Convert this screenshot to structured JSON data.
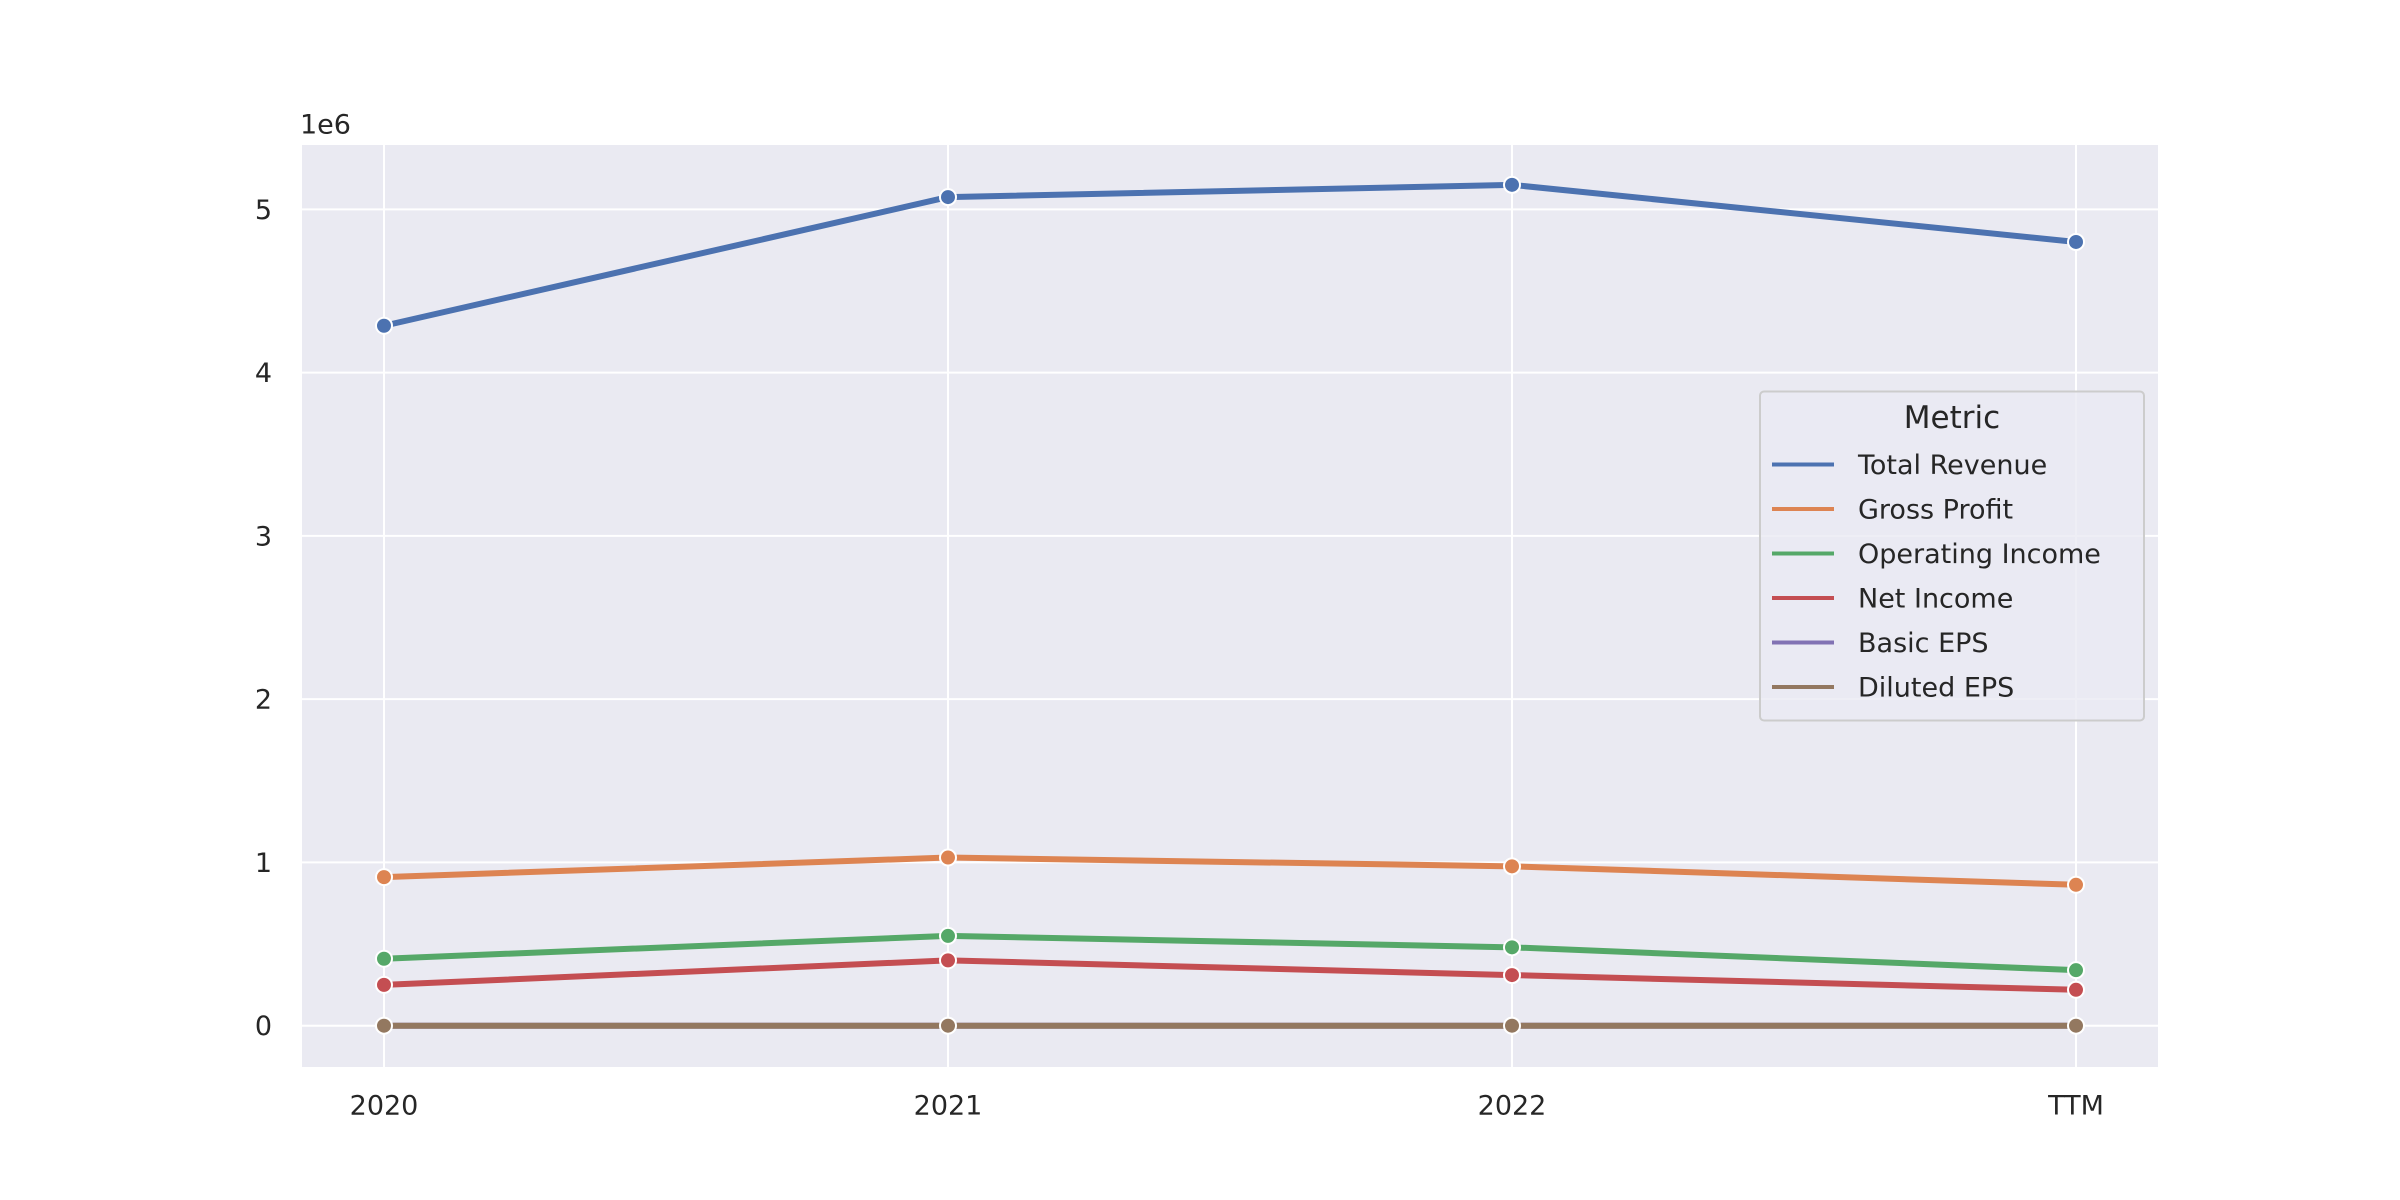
{
  "chart_data": {
    "type": "line",
    "categories": [
      "2020",
      "2021",
      "2022",
      "TTM"
    ],
    "series": [
      {
        "name": "Total Revenue",
        "color": "#4c72b0",
        "values": [
          4.287,
          5.075,
          5.15,
          4.8
        ]
      },
      {
        "name": "Gross Profit",
        "color": "#dd8452",
        "values": [
          0.91,
          1.03,
          0.976,
          0.863
        ]
      },
      {
        "name": "Operating Income",
        "color": "#55a868",
        "values": [
          0.41,
          0.55,
          0.48,
          0.34
        ]
      },
      {
        "name": "Net Income",
        "color": "#c44e52",
        "values": [
          0.25,
          0.4,
          0.31,
          0.22
        ]
      },
      {
        "name": "Basic EPS",
        "color": "#8172b3",
        "values": [
          0,
          0,
          0,
          0
        ]
      },
      {
        "name": "Diluted EPS",
        "color": "#937860",
        "values": [
          0,
          0,
          0,
          0
        ]
      }
    ],
    "y_offset_label": "1e6",
    "ylim": [
      -0.253,
      5.394
    ],
    "yticks": [
      0,
      1,
      2,
      3,
      4,
      5
    ],
    "grid": true,
    "legend_title": "Metric",
    "legend_position": "center right"
  }
}
